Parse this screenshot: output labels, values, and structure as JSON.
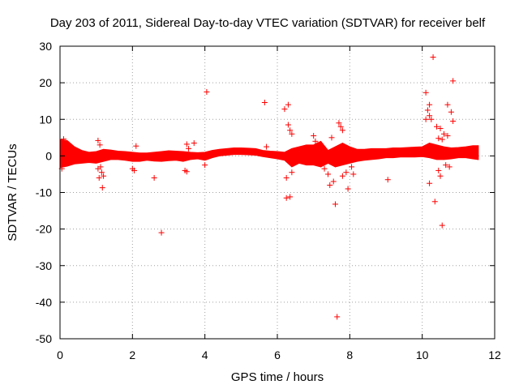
{
  "chart_data": {
    "type": "scatter",
    "title": "Day 203 of 2011, Sidereal Day-to-day VTEC variation (SDTVAR) for receiver belf",
    "xlabel": "GPS time / hours",
    "ylabel": "SDTVAR / TECUs",
    "xlim": [
      0,
      12
    ],
    "ylim": [
      -50,
      30
    ],
    "xticks": [
      "0",
      "2",
      "4",
      "6",
      "8",
      "10",
      "12"
    ],
    "yticks": [
      "30",
      "20",
      "10",
      "0",
      "-10",
      "-20",
      "-30",
      "-40",
      "-50"
    ],
    "grid": true,
    "marker": "+",
    "series": [
      {
        "name": "SDTVAR",
        "color": "#ff0000",
        "band": [
          [
            0.0,
            -3.2,
            4.5
          ],
          [
            0.2,
            -2.8,
            4.2
          ],
          [
            0.4,
            -2.2,
            2.5
          ],
          [
            0.6,
            -2.0,
            1.5
          ],
          [
            0.8,
            -1.8,
            1.0
          ],
          [
            1.0,
            -2.0,
            1.2
          ],
          [
            1.2,
            -1.5,
            1.8
          ],
          [
            1.4,
            -1.0,
            1.6
          ],
          [
            1.6,
            -1.0,
            1.3
          ],
          [
            1.8,
            -1.2,
            1.2
          ],
          [
            2.0,
            -1.5,
            1.0
          ],
          [
            2.2,
            -1.5,
            0.8
          ],
          [
            2.4,
            -1.2,
            0.8
          ],
          [
            2.6,
            -1.4,
            1.0
          ],
          [
            2.8,
            -1.5,
            1.2
          ],
          [
            3.0,
            -1.3,
            1.4
          ],
          [
            3.2,
            -1.2,
            1.3
          ],
          [
            3.4,
            -1.5,
            1.2
          ],
          [
            3.6,
            -1.0,
            1.0
          ],
          [
            3.8,
            -0.8,
            0.9
          ],
          [
            4.0,
            -1.2,
            1.0
          ],
          [
            4.2,
            -0.5,
            1.5
          ],
          [
            4.4,
            0.0,
            1.8
          ],
          [
            4.6,
            0.2,
            2.0
          ],
          [
            4.8,
            0.4,
            2.2
          ],
          [
            5.0,
            0.4,
            2.2
          ],
          [
            5.2,
            0.3,
            2.1
          ],
          [
            5.4,
            0.2,
            2.0
          ],
          [
            5.6,
            -0.2,
            1.5
          ],
          [
            5.8,
            -0.5,
            1.3
          ],
          [
            6.0,
            -0.8,
            1.2
          ],
          [
            6.2,
            -1.2,
            1.0
          ],
          [
            6.4,
            -3.0,
            2.0
          ],
          [
            6.6,
            -2.0,
            2.5
          ],
          [
            6.8,
            -2.5,
            3.0
          ],
          [
            7.0,
            -2.5,
            3.0
          ],
          [
            7.2,
            -3.0,
            4.0
          ],
          [
            7.4,
            -2.0,
            1.5
          ],
          [
            7.6,
            -3.0,
            2.5
          ],
          [
            7.8,
            -2.5,
            3.5
          ],
          [
            8.0,
            -2.0,
            2.5
          ],
          [
            8.2,
            -1.5,
            1.8
          ],
          [
            8.4,
            -1.2,
            1.8
          ],
          [
            8.6,
            -1.0,
            2.0
          ],
          [
            8.8,
            -0.8,
            2.0
          ],
          [
            9.0,
            -0.5,
            2.0
          ],
          [
            9.2,
            -0.5,
            2.2
          ],
          [
            9.4,
            -0.3,
            2.2
          ],
          [
            9.6,
            -0.3,
            2.3
          ],
          [
            9.8,
            -0.3,
            2.4
          ],
          [
            10.0,
            -0.2,
            2.5
          ],
          [
            10.2,
            -0.5,
            3.5
          ],
          [
            10.4,
            -1.0,
            3.0
          ],
          [
            10.6,
            -1.0,
            2.5
          ],
          [
            10.8,
            -0.8,
            2.2
          ],
          [
            11.0,
            -0.5,
            2.3
          ],
          [
            11.2,
            -0.5,
            2.5
          ],
          [
            11.4,
            -0.8,
            2.8
          ],
          [
            11.55,
            -1.0,
            2.8
          ]
        ],
        "outliers": [
          [
            0.05,
            -3.5
          ],
          [
            0.1,
            4.6
          ],
          [
            1.05,
            4.2
          ],
          [
            1.1,
            3.0
          ],
          [
            1.05,
            -3.5
          ],
          [
            1.15,
            -4.5
          ],
          [
            1.08,
            -6.0
          ],
          [
            1.2,
            -5.5
          ],
          [
            1.17,
            -8.7
          ],
          [
            1.12,
            -3.0
          ],
          [
            2.0,
            -3.5
          ],
          [
            2.05,
            -4.0
          ],
          [
            2.1,
            2.7
          ],
          [
            2.6,
            -6.0
          ],
          [
            2.8,
            -21.0
          ],
          [
            3.45,
            -4.0
          ],
          [
            3.5,
            -4.3
          ],
          [
            3.5,
            3.2
          ],
          [
            3.55,
            2.0
          ],
          [
            3.7,
            3.5
          ],
          [
            4.05,
            17.5
          ],
          [
            4.0,
            -2.5
          ],
          [
            5.65,
            14.6
          ],
          [
            5.7,
            2.5
          ],
          [
            6.2,
            12.8
          ],
          [
            6.3,
            14.0
          ],
          [
            6.25,
            -11.5
          ],
          [
            6.35,
            -11.2
          ],
          [
            6.3,
            8.5
          ],
          [
            6.35,
            7.0
          ],
          [
            6.4,
            6.0
          ],
          [
            6.25,
            -6.0
          ],
          [
            6.4,
            -4.5
          ],
          [
            7.0,
            5.5
          ],
          [
            7.05,
            4.0
          ],
          [
            7.1,
            3.0
          ],
          [
            7.3,
            -3.5
          ],
          [
            7.4,
            -5.0
          ],
          [
            7.45,
            -8.0
          ],
          [
            7.55,
            -7.0
          ],
          [
            7.6,
            -13.2
          ],
          [
            7.5,
            5.0
          ],
          [
            7.7,
            9.0
          ],
          [
            7.75,
            8.0
          ],
          [
            7.8,
            7.0
          ],
          [
            7.65,
            -44.0
          ],
          [
            7.8,
            -5.5
          ],
          [
            7.9,
            -4.5
          ],
          [
            7.95,
            -9.0
          ],
          [
            8.05,
            -3.0
          ],
          [
            8.1,
            -5.0
          ],
          [
            9.05,
            -6.5
          ],
          [
            10.1,
            17.3
          ],
          [
            10.2,
            14.0
          ],
          [
            10.15,
            12.5
          ],
          [
            10.2,
            11.0
          ],
          [
            10.25,
            10.0
          ],
          [
            10.3,
            27.0
          ],
          [
            10.1,
            10.0
          ],
          [
            10.2,
            -7.5
          ],
          [
            10.35,
            -12.5
          ],
          [
            10.4,
            8.0
          ],
          [
            10.5,
            7.5
          ],
          [
            10.6,
            6.0
          ],
          [
            10.45,
            4.8
          ],
          [
            10.55,
            4.5
          ],
          [
            10.45,
            -4.0
          ],
          [
            10.5,
            -5.5
          ],
          [
            10.55,
            -19.0
          ],
          [
            10.65,
            -2.5
          ],
          [
            10.7,
            14.0
          ],
          [
            10.8,
            12.0
          ],
          [
            10.85,
            20.5
          ],
          [
            10.85,
            9.5
          ],
          [
            10.7,
            5.5
          ],
          [
            10.75,
            -3.0
          ]
        ]
      }
    ]
  }
}
